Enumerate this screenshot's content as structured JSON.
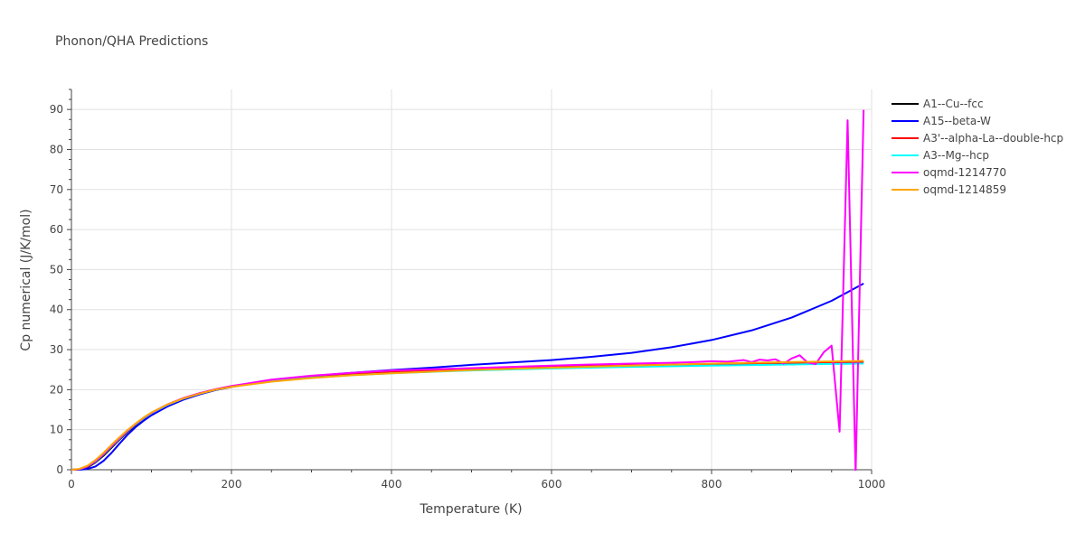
{
  "chart_data": {
    "type": "line",
    "title": "Phonon/QHA Predictions",
    "xlabel": "Temperature (K)",
    "ylabel": "Cp numerical (J/K/mol)",
    "xlim": [
      0,
      1000
    ],
    "ylim": [
      0,
      95
    ],
    "xticks": [
      0,
      200,
      400,
      600,
      800,
      1000
    ],
    "yticks": [
      0,
      10,
      20,
      30,
      40,
      50,
      60,
      70,
      80,
      90
    ],
    "grid": true,
    "legend_position": "right",
    "series": [
      {
        "name": "A1--Cu--fcc",
        "color": "#000000",
        "x": [
          0,
          10,
          20,
          30,
          40,
          50,
          60,
          70,
          80,
          90,
          100,
          120,
          140,
          160,
          180,
          200,
          250,
          300,
          350,
          400,
          500,
          600,
          700,
          800,
          900,
          990
        ],
        "y": [
          0,
          0.1,
          0.6,
          1.8,
          3.5,
          5.5,
          7.5,
          9.4,
          11.1,
          12.6,
          13.9,
          16.0,
          17.6,
          18.9,
          19.9,
          20.7,
          22.2,
          23.2,
          23.9,
          24.4,
          25.1,
          25.6,
          26.0,
          26.3,
          26.6,
          26.8
        ]
      },
      {
        "name": "A15--beta-W",
        "color": "#0000ff",
        "x": [
          0,
          10,
          20,
          30,
          40,
          50,
          60,
          70,
          80,
          90,
          100,
          120,
          140,
          160,
          180,
          200,
          250,
          300,
          350,
          400,
          450,
          500,
          550,
          600,
          650,
          700,
          750,
          800,
          850,
          900,
          950,
          990
        ],
        "y": [
          0,
          0,
          0.2,
          0.8,
          2.2,
          4.2,
          6.5,
          8.7,
          10.6,
          12.2,
          13.6,
          15.8,
          17.5,
          18.8,
          19.9,
          20.7,
          22.3,
          23.4,
          24.2,
          24.9,
          25.5,
          26.2,
          26.8,
          27.4,
          28.2,
          29.2,
          30.6,
          32.4,
          34.8,
          38.0,
          42.2,
          46.5
        ]
      },
      {
        "name": "A3'--alpha-La--double-hcp",
        "color": "#ff0000",
        "x": [
          0,
          10,
          20,
          30,
          40,
          50,
          60,
          70,
          80,
          90,
          100,
          120,
          140,
          160,
          180,
          200,
          250,
          300,
          350,
          400,
          500,
          600,
          700,
          800,
          900,
          990
        ],
        "y": [
          0,
          0.15,
          0.8,
          2.1,
          3.9,
          5.9,
          7.8,
          9.7,
          11.4,
          12.9,
          14.2,
          16.3,
          17.9,
          19.1,
          20.1,
          20.9,
          22.3,
          23.3,
          24.0,
          24.5,
          25.2,
          25.7,
          26.1,
          26.4,
          26.7,
          26.9
        ]
      },
      {
        "name": "A3--Mg--hcp",
        "color": "#00ffff",
        "x": [
          0,
          10,
          20,
          30,
          40,
          50,
          60,
          70,
          80,
          90,
          100,
          120,
          140,
          160,
          180,
          200,
          250,
          300,
          350,
          400,
          500,
          600,
          700,
          800,
          900,
          990
        ],
        "y": [
          0,
          0.15,
          0.8,
          2.0,
          3.8,
          5.8,
          7.7,
          9.6,
          11.3,
          12.8,
          14.1,
          16.2,
          17.8,
          19.0,
          20.0,
          20.8,
          22.1,
          23.0,
          23.6,
          24.1,
          24.8,
          25.3,
          25.7,
          26.0,
          26.3,
          26.5
        ]
      },
      {
        "name": "oqmd-1214770",
        "color": "#ff00ff",
        "x": [
          0,
          10,
          20,
          30,
          40,
          50,
          60,
          70,
          80,
          90,
          100,
          120,
          140,
          160,
          180,
          200,
          250,
          300,
          350,
          400,
          500,
          600,
          650,
          700,
          750,
          780,
          800,
          820,
          840,
          850,
          860,
          870,
          880,
          890,
          900,
          910,
          920,
          930,
          940,
          950,
          960,
          970,
          980,
          990
        ],
        "y": [
          0,
          0.15,
          0.8,
          2.1,
          3.9,
          5.9,
          7.8,
          9.7,
          11.4,
          12.9,
          14.2,
          16.3,
          17.9,
          19.1,
          20.1,
          20.9,
          22.5,
          23.5,
          24.2,
          24.8,
          25.4,
          26.0,
          26.3,
          26.5,
          26.7,
          26.9,
          27.1,
          27.0,
          27.4,
          26.9,
          27.5,
          27.3,
          27.6,
          26.5,
          27.8,
          28.6,
          26.8,
          26.4,
          29.3,
          31.0,
          9.5,
          87.3,
          -1,
          89.9
        ]
      },
      {
        "name": "oqmd-1214859",
        "color": "#ffa500",
        "x": [
          0,
          10,
          20,
          30,
          40,
          50,
          60,
          70,
          80,
          90,
          100,
          120,
          140,
          160,
          180,
          200,
          250,
          300,
          350,
          400,
          500,
          600,
          700,
          800,
          900,
          990
        ],
        "y": [
          0,
          0.2,
          1.0,
          2.4,
          4.2,
          6.2,
          8.1,
          9.9,
          11.5,
          13.0,
          14.3,
          16.3,
          17.8,
          19.0,
          20.0,
          20.7,
          22.0,
          22.9,
          23.6,
          24.1,
          24.9,
          25.5,
          26.0,
          26.5,
          26.9,
          27.2
        ]
      }
    ]
  }
}
